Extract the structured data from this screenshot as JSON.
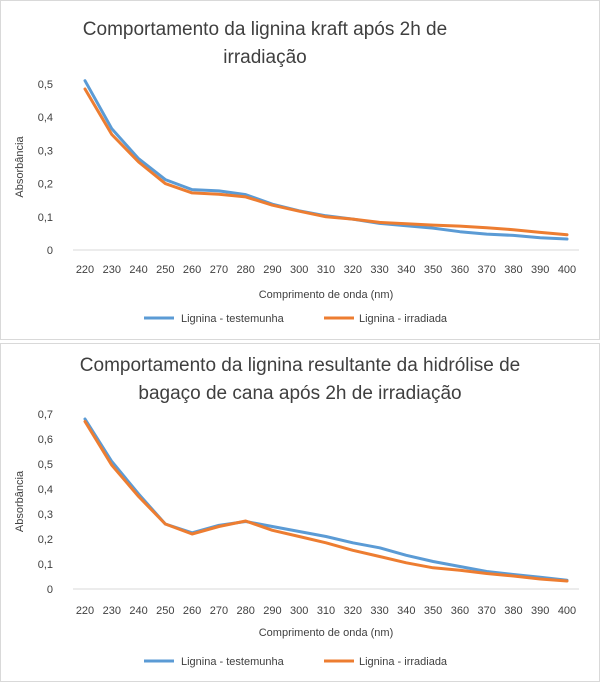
{
  "colors": {
    "testemunha": "#5b9bd5",
    "irradiada": "#ed7d31",
    "axis": "#d9d9d9",
    "text": "#404040"
  },
  "chart_data": [
    {
      "type": "line",
      "title_lines": [
        "Comportamento da lignina kraft  após 2h de",
        "irradiação"
      ],
      "xlabel": "Comprimento de onda (nm)",
      "ylabel": "Absorbância",
      "categories": [
        220,
        230,
        240,
        250,
        260,
        270,
        280,
        290,
        300,
        310,
        320,
        330,
        340,
        350,
        360,
        370,
        380,
        390,
        400
      ],
      "y_ticks": [
        "0",
        "0,1",
        "0,2",
        "0,3",
        "0,4",
        "0,5"
      ],
      "ylim": [
        0,
        0.5
      ],
      "grid": false,
      "legend_position": "bottom",
      "series": [
        {
          "name": "Lignina - testemunha",
          "color_key": "testemunha",
          "values": [
            0.51,
            0.365,
            0.275,
            0.212,
            0.182,
            0.178,
            0.167,
            0.138,
            0.118,
            0.103,
            0.093,
            0.08,
            0.073,
            0.066,
            0.055,
            0.048,
            0.044,
            0.037,
            0.033
          ]
        },
        {
          "name": "Lignina - irradiada",
          "color_key": "irradiada",
          "values": [
            0.485,
            0.348,
            0.265,
            0.2,
            0.172,
            0.168,
            0.16,
            0.135,
            0.117,
            0.1,
            0.093,
            0.083,
            0.079,
            0.075,
            0.072,
            0.067,
            0.061,
            0.053,
            0.046
          ]
        }
      ]
    },
    {
      "type": "line",
      "title_lines": [
        "Comportamento da lignina resultante da hidrólise de",
        "bagaço de cana após 2h de irradiação"
      ],
      "xlabel": "Comprimento de onda (nm)",
      "ylabel": "Absorbância",
      "categories": [
        220,
        230,
        240,
        250,
        260,
        270,
        280,
        290,
        300,
        310,
        320,
        330,
        340,
        350,
        360,
        370,
        380,
        390,
        400
      ],
      "y_ticks": [
        "0",
        "0,1",
        "0,2",
        "0,3",
        "0,4",
        "0,5",
        "0,6",
        "0,7"
      ],
      "ylim": [
        0,
        0.7
      ],
      "grid": false,
      "legend_position": "bottom",
      "series": [
        {
          "name": "Lignina - testemunha",
          "color_key": "testemunha",
          "values": [
            0.68,
            0.51,
            0.38,
            0.26,
            0.225,
            0.255,
            0.27,
            0.25,
            0.23,
            0.21,
            0.185,
            0.165,
            0.135,
            0.11,
            0.09,
            0.07,
            0.058,
            0.047,
            0.035
          ]
        },
        {
          "name": "Lignina - irradiada",
          "color_key": "irradiada",
          "values": [
            0.67,
            0.495,
            0.37,
            0.26,
            0.22,
            0.25,
            0.272,
            0.235,
            0.21,
            0.185,
            0.155,
            0.13,
            0.105,
            0.085,
            0.075,
            0.062,
            0.052,
            0.04,
            0.032
          ]
        }
      ]
    }
  ]
}
